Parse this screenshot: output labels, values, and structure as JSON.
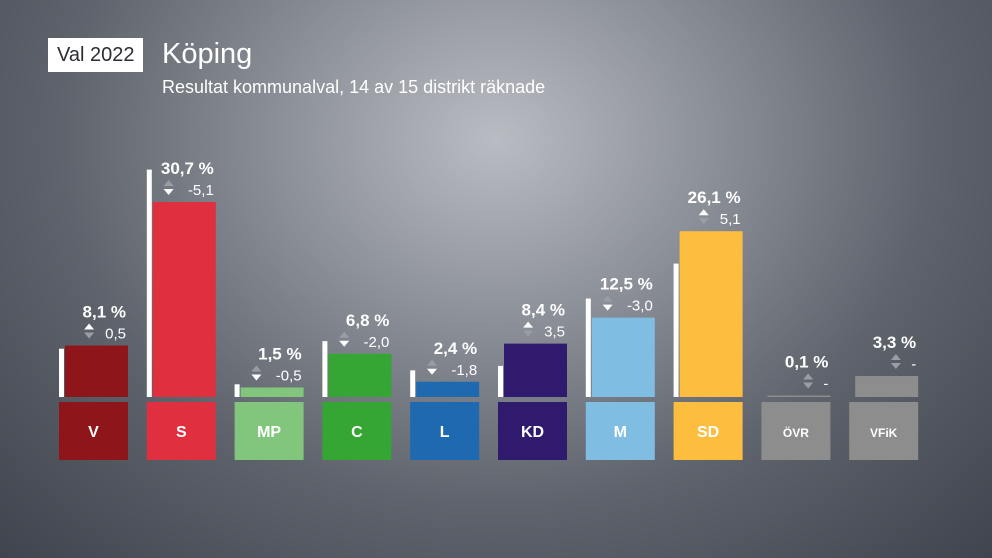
{
  "header": {
    "badge": "Val 2022",
    "title": "Köping",
    "subtitle": "Resultat kommunalval, 14 av 15 distrikt räknade"
  },
  "chart_data": {
    "type": "bar",
    "categories": [
      "V",
      "S",
      "MP",
      "C",
      "L",
      "KD",
      "M",
      "SD",
      "ÖVR",
      "VFiK"
    ],
    "values": [
      8.1,
      30.7,
      1.5,
      6.8,
      2.4,
      8.4,
      12.5,
      26.1,
      0.1,
      3.3
    ],
    "previous_values": [
      7.6,
      35.8,
      2.0,
      8.8,
      4.2,
      4.9,
      15.5,
      21.0,
      null,
      null
    ],
    "value_labels": [
      "8,1 %",
      "30,7 %",
      "1,5 %",
      "6,8 %",
      "2,4 %",
      "8,4 %",
      "12,5 %",
      "26,1 %",
      "0,1 %",
      "3,3 %"
    ],
    "change_labels": [
      "0,5",
      "-5,1",
      "-0,5",
      "-2,0",
      "-1,8",
      "3,5",
      "-3,0",
      "5,1",
      "-",
      "-"
    ],
    "colors": [
      "#8e1519",
      "#e03040",
      "#82c67d",
      "#35a534",
      "#1e69b0",
      "#2f1a6e",
      "#7fbde2",
      "#fdbe40",
      "#8d8d8d",
      "#8d8d8d"
    ],
    "label_colors": [
      "#8e1519",
      "#e03040",
      "#82c67d",
      "#35a534",
      "#1e69b0",
      "#2f1a6e",
      "#7fbde2",
      "#fdbe40",
      "#8d8d8d",
      "#8d8d8d"
    ],
    "previous_marker_color": "#ffffff",
    "ylim": [
      0,
      36
    ],
    "grid": false,
    "legend": "none"
  }
}
